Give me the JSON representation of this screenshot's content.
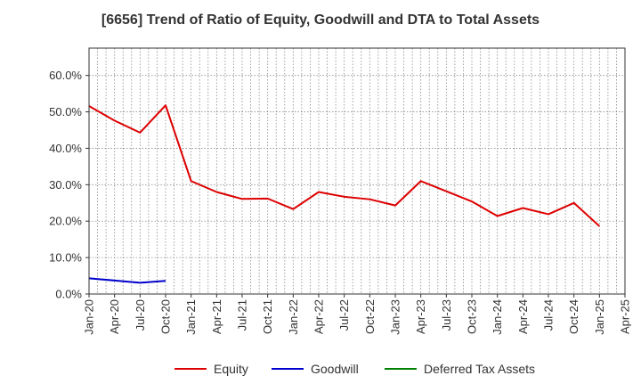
{
  "chart_data": {
    "type": "line",
    "title": "[6656]  Trend of Ratio of Equity, Goodwill and DTA to Total Assets",
    "xlabel": "",
    "ylabel": "",
    "x_tick_labels": [
      "Jan-20",
      "Apr-20",
      "Jul-20",
      "Oct-20",
      "Jan-21",
      "Apr-21",
      "Jul-21",
      "Oct-21",
      "Jan-22",
      "Apr-22",
      "Jul-22",
      "Oct-22",
      "Jan-23",
      "Apr-23",
      "Jul-23",
      "Oct-23",
      "Jan-24",
      "Apr-24",
      "Jul-24",
      "Oct-24",
      "Jan-25",
      "Apr-25"
    ],
    "y_tick_labels": [
      "0.0%",
      "10.0%",
      "20.0%",
      "30.0%",
      "40.0%",
      "50.0%",
      "60.0%"
    ],
    "ylim": [
      0,
      67.5
    ],
    "grid": true,
    "legend_position": "bottom",
    "series": [
      {
        "name": "Equity",
        "color": "#dd0000",
        "x": [
          "Jan-20",
          "Apr-20",
          "Jul-20",
          "Oct-20",
          "Jan-21",
          "Apr-21",
          "Jul-21",
          "Oct-21",
          "Jan-22",
          "Apr-22",
          "Jul-22",
          "Oct-22",
          "Jan-23",
          "Apr-23",
          "Jul-23",
          "Oct-23",
          "Jan-24",
          "Apr-24",
          "Jul-24",
          "Oct-24",
          "Jan-25"
        ],
        "values": [
          51.6,
          47.6,
          44.3,
          51.8,
          31.0,
          28.0,
          26.1,
          26.2,
          23.3,
          28.0,
          26.7,
          26.0,
          24.3,
          31.0,
          28.2,
          25.4,
          21.4,
          23.6,
          21.9,
          25.0,
          18.6
        ]
      },
      {
        "name": "Goodwill",
        "color": "#0000cc",
        "x": [
          "Jan-20",
          "Apr-20",
          "Jul-20",
          "Oct-20"
        ],
        "values": [
          4.3,
          3.7,
          3.1,
          3.6
        ]
      },
      {
        "name": "Deferred Tax Assets",
        "color": "#008000",
        "x": [],
        "values": []
      }
    ]
  }
}
